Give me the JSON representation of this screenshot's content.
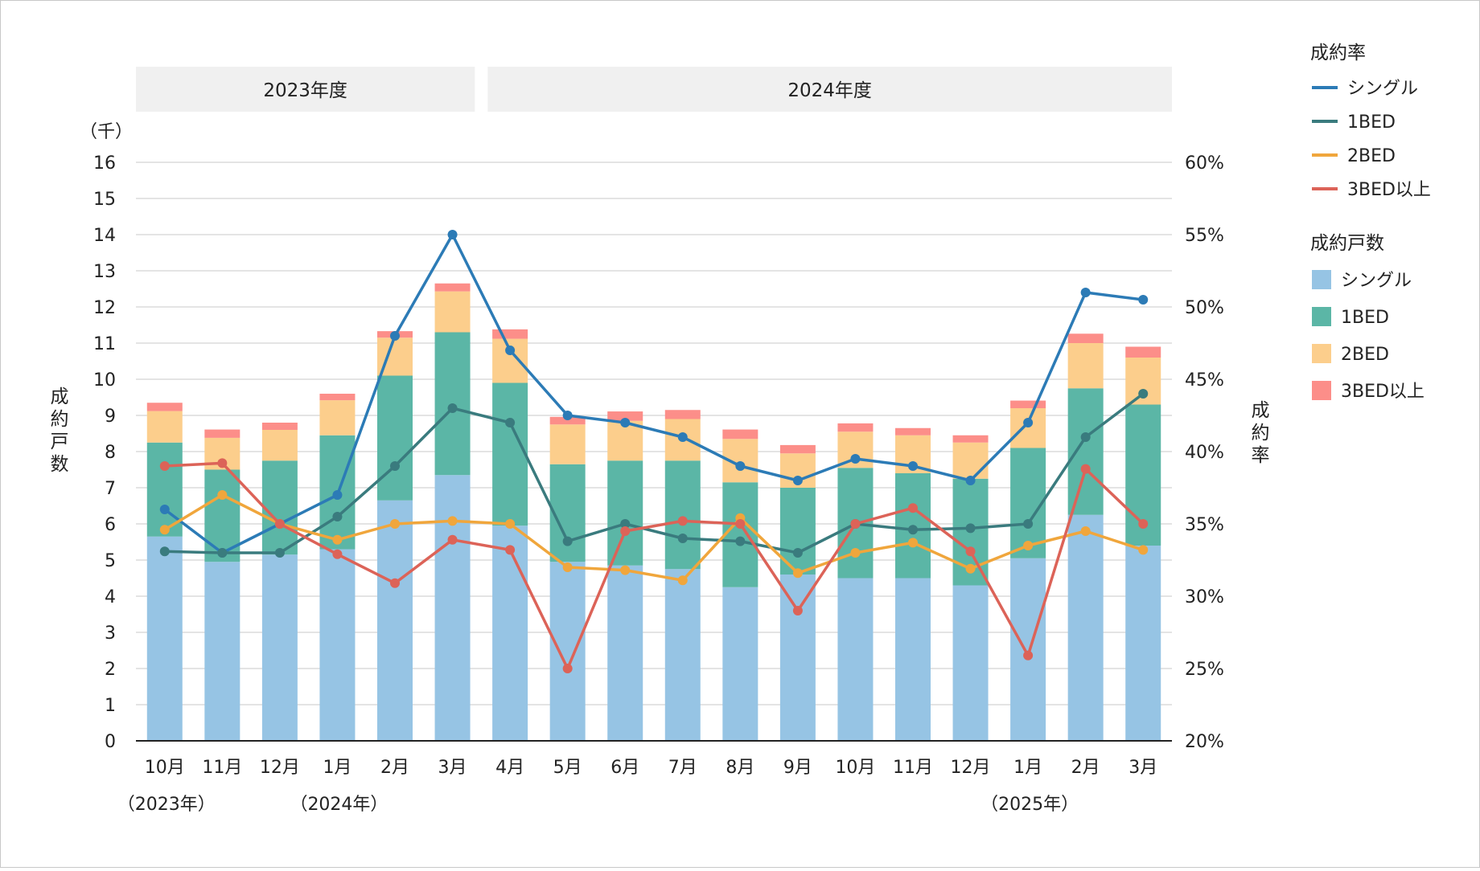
{
  "chart_data": {
    "type": "bar",
    "title": "",
    "bands": [
      "2023年度",
      "2024年度"
    ],
    "categories": [
      "10月",
      "11月",
      "12月",
      "1月",
      "2月",
      "3月",
      "4月",
      "5月",
      "6月",
      "7月",
      "8月",
      "9月",
      "10月",
      "11月",
      "12月",
      "1月",
      "2月",
      "3月"
    ],
    "year_labels": [
      {
        "category_index": 0,
        "text": "（2023年）"
      },
      {
        "category_index": 3,
        "text": "（2024年）"
      },
      {
        "category_index": 15,
        "text": "（2025年）"
      }
    ],
    "left_axis": {
      "unit": "（千）",
      "label": [
        "成",
        "約",
        "戸",
        "数"
      ],
      "ylim": [
        0,
        16
      ],
      "ticks": [
        "0",
        "1",
        "2",
        "3",
        "4",
        "5",
        "6",
        "7",
        "8",
        "9",
        "10",
        "11",
        "12",
        "13",
        "14",
        "15",
        "16"
      ]
    },
    "right_axis": {
      "label": [
        "成",
        "約",
        "率"
      ],
      "ylim": [
        20,
        60
      ],
      "ticks": [
        "20%",
        "25%",
        "30%",
        "35%",
        "40%",
        "45%",
        "50%",
        "55%",
        "60%"
      ]
    },
    "bar_series": [
      {
        "name": "シングル",
        "color": "#96c4e4",
        "values": [
          5.65,
          4.95,
          5.15,
          5.3,
          6.65,
          7.35,
          5.95,
          4.95,
          4.85,
          4.75,
          4.25,
          4.6,
          4.5,
          4.5,
          4.3,
          5.05,
          6.25,
          5.4
        ]
      },
      {
        "name": "1BED",
        "color": "#5bb6a6",
        "values": [
          2.6,
          2.55,
          2.6,
          3.15,
          3.45,
          3.95,
          3.95,
          2.7,
          2.9,
          3.0,
          2.9,
          2.4,
          3.05,
          2.9,
          2.95,
          3.05,
          3.5,
          3.9
        ]
      },
      {
        "name": "2BED",
        "color": "#fcce8c",
        "values": [
          0.87,
          0.88,
          0.85,
          0.97,
          1.05,
          1.13,
          1.22,
          1.1,
          1.1,
          1.15,
          1.2,
          0.95,
          1.0,
          1.05,
          1.0,
          1.1,
          1.25,
          1.3
        ]
      },
      {
        "name": "3BED以上",
        "color": "#fc8e89",
        "values": [
          0.23,
          0.23,
          0.2,
          0.18,
          0.18,
          0.22,
          0.26,
          0.21,
          0.26,
          0.25,
          0.26,
          0.23,
          0.23,
          0.2,
          0.2,
          0.21,
          0.26,
          0.3
        ]
      }
    ],
    "line_series": [
      {
        "name": "シングル",
        "color": "#2c7bb6",
        "values": [
          36.0,
          33.0,
          35.0,
          37.0,
          48.0,
          55.0,
          47.0,
          42.5,
          42.0,
          41.0,
          39.0,
          38.0,
          39.5,
          39.0,
          38.0,
          42.0,
          51.0,
          50.5
        ]
      },
      {
        "name": "1BED",
        "color": "#3a7b7e",
        "values": [
          33.1,
          33.0,
          33.0,
          35.5,
          39.0,
          43.0,
          42.0,
          33.8,
          35.0,
          34.0,
          33.8,
          33.0,
          35.0,
          34.6,
          34.7,
          35.0,
          41.0,
          44.0
        ]
      },
      {
        "name": "2BED",
        "color": "#f0a63c",
        "values": [
          34.6,
          37.0,
          35.0,
          33.9,
          35.0,
          35.2,
          35.0,
          32.0,
          31.8,
          31.1,
          35.4,
          31.6,
          33.0,
          33.7,
          31.9,
          33.5,
          34.5,
          33.2
        ]
      },
      {
        "name": "3BED以上",
        "color": "#dc6358",
        "values": [
          39.0,
          39.2,
          35.0,
          32.9,
          30.9,
          33.9,
          33.2,
          25.0,
          34.5,
          35.2,
          35.0,
          29.0,
          35.0,
          36.1,
          33.1,
          25.9,
          38.8,
          35.0
        ]
      }
    ],
    "legend": {
      "position": "right",
      "line_title": "成約率",
      "bar_title": "成約戸数"
    },
    "grid": true
  }
}
